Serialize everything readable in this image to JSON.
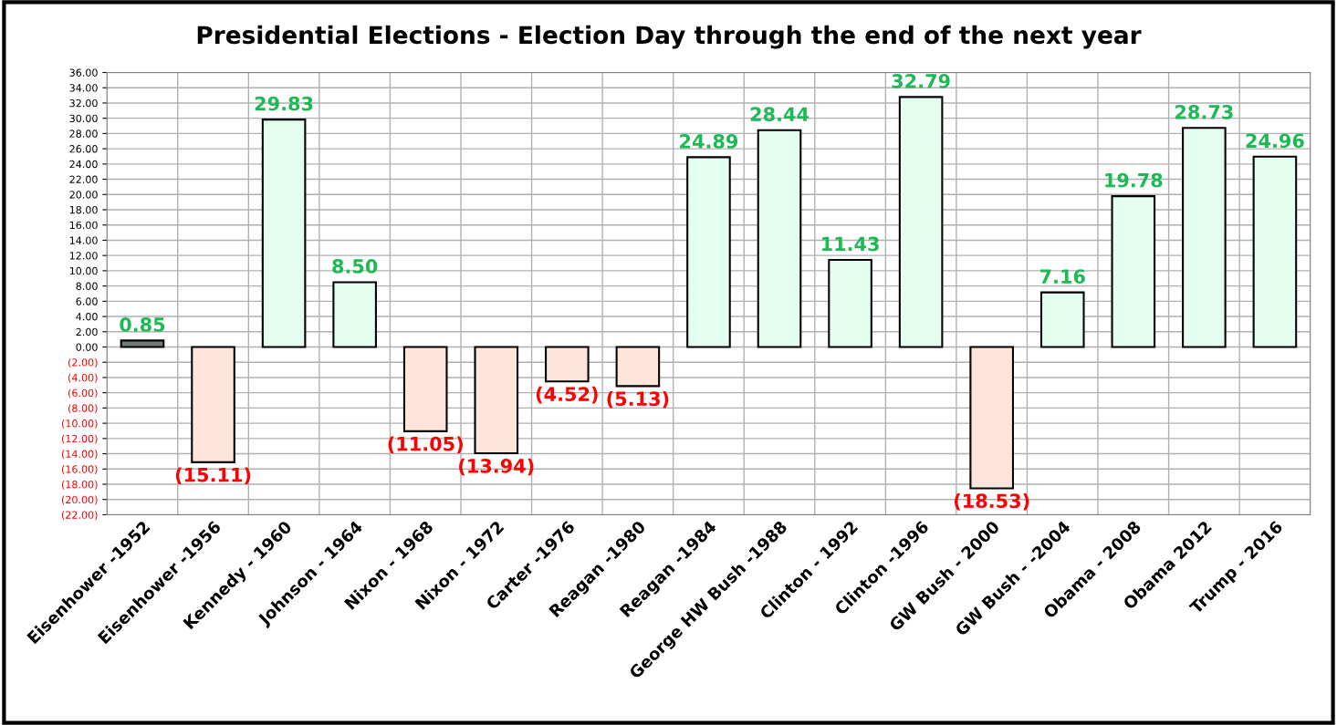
{
  "chart_data": {
    "type": "bar",
    "title": "Presidential Elections - Election Day through the end of the next year",
    "categories": [
      "Eisenhower -1952",
      "Eisenhower -1956",
      "Kennedy - 1960",
      "Johnson - 1964",
      "Nixon - 1968",
      "Nixon - 1972",
      "Carter -1976",
      "Reagan -1980",
      "Reagan -1984",
      "George HW Bush -1988",
      "Clinton - 1992",
      "Clinton -1996",
      "GW Bush - 2000",
      "GW Bush - -2004",
      "Obama - 2008",
      "Obama 2012",
      "Trump - 2016"
    ],
    "values": [
      0.85,
      -15.11,
      29.83,
      8.5,
      -11.05,
      -13.94,
      -4.52,
      -5.13,
      24.89,
      28.44,
      11.43,
      32.79,
      -18.53,
      7.16,
      19.78,
      28.73,
      24.96
    ],
    "value_labels": [
      "0.85",
      "(15.11)",
      "29.83",
      "8.50",
      "(11.05)",
      "(13.94)",
      "(4.52)",
      "(5.13)",
      "24.89",
      "28.44",
      "11.43",
      "32.79",
      "(18.53)",
      "7.16",
      "19.78",
      "28.73",
      "24.96"
    ],
    "colors": [
      "#6f7d76",
      "#ffe4da",
      "#e4fff0",
      "#e4fff0",
      "#ffe4da",
      "#ffe4da",
      "#ffe4da",
      "#ffe4da",
      "#e4fff0",
      "#e4fff0",
      "#e4fff0",
      "#e4fff0",
      "#ffe4da",
      "#e4fff0",
      "#e4fff0",
      "#e4fff0",
      "#e4fff0"
    ],
    "ylim": [
      -22,
      36
    ],
    "yticks": [
      {
        "value": -22,
        "label": "(22.00)"
      },
      {
        "value": -20,
        "label": "(20.00)"
      },
      {
        "value": -18,
        "label": "(18.00)"
      },
      {
        "value": -16,
        "label": "(16.00)"
      },
      {
        "value": -14,
        "label": "(14.00)"
      },
      {
        "value": -12,
        "label": "(12.00)"
      },
      {
        "value": -10,
        "label": "(10.00)"
      },
      {
        "value": -8,
        "label": "(8.00)"
      },
      {
        "value": -6,
        "label": "(6.00)"
      },
      {
        "value": -4,
        "label": "(4.00)"
      },
      {
        "value": -2,
        "label": "(2.00)"
      },
      {
        "value": 0,
        "label": "0.00"
      },
      {
        "value": 2,
        "label": "2.00"
      },
      {
        "value": 4,
        "label": "4.00"
      },
      {
        "value": 6,
        "label": "6.00"
      },
      {
        "value": 8,
        "label": "8.00"
      },
      {
        "value": 10,
        "label": "10.00"
      },
      {
        "value": 12,
        "label": "12.00"
      },
      {
        "value": 14,
        "label": "14.00"
      },
      {
        "value": 16,
        "label": "16.00"
      },
      {
        "value": 18,
        "label": "18.00"
      },
      {
        "value": 20,
        "label": "20.00"
      },
      {
        "value": 22,
        "label": "22.00"
      },
      {
        "value": 24,
        "label": "24.00"
      },
      {
        "value": 26,
        "label": "26.00"
      },
      {
        "value": 28,
        "label": "28.00"
      },
      {
        "value": 30,
        "label": "30.00"
      },
      {
        "value": 32,
        "label": "32.00"
      },
      {
        "value": 34,
        "label": "34.00"
      },
      {
        "value": 36,
        "label": "36.00"
      }
    ],
    "grid": true,
    "legend": false
  }
}
